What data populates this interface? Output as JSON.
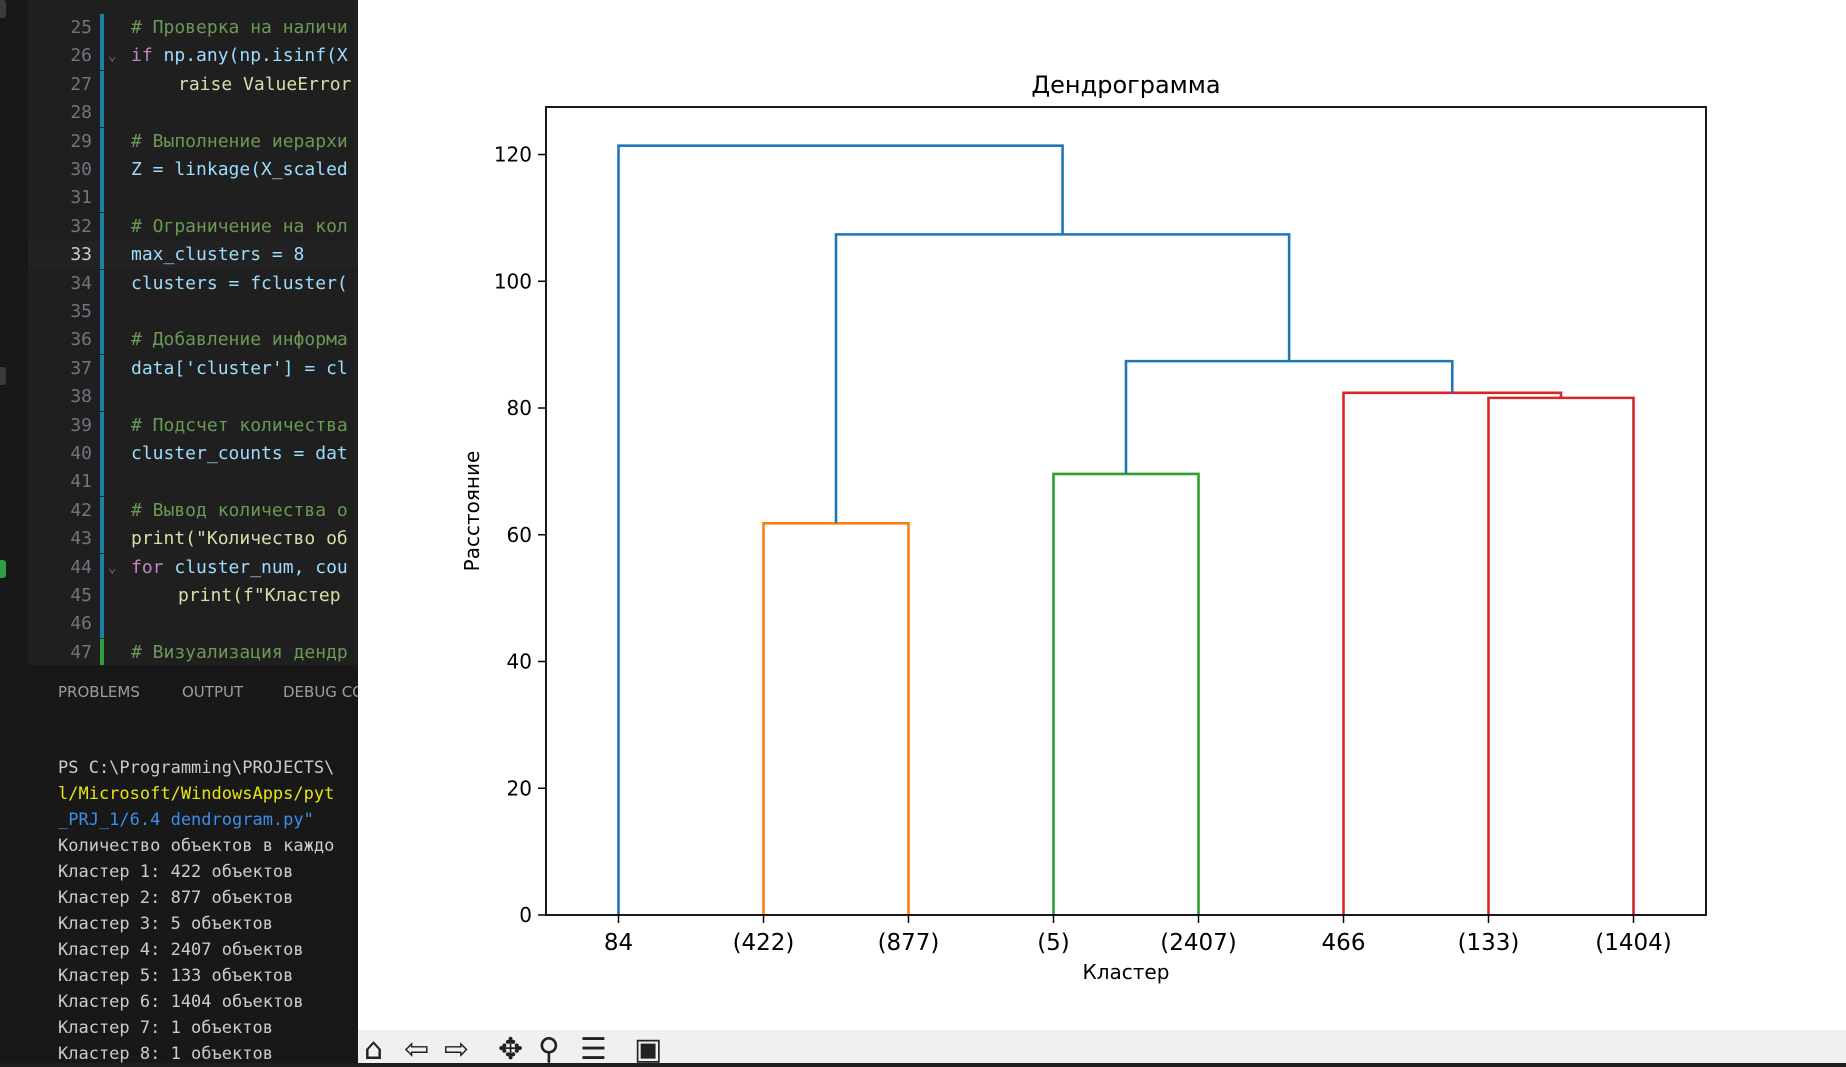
{
  "editor": {
    "lines": [
      {
        "n": "25",
        "text": "# Проверка на наличи",
        "cls": "cm"
      },
      {
        "n": "26",
        "kw": "if ",
        "rest": "np.any(np.isinf(X",
        "fold": true
      },
      {
        "n": "27",
        "text": "raise ValueError",
        "indent": true,
        "cls": "fn"
      },
      {
        "n": "28",
        "text": ""
      },
      {
        "n": "29",
        "text": "# Выполнение иерархи",
        "cls": "cm"
      },
      {
        "n": "30",
        "text": "Z = linkage(X_scaled",
        "cls": "var"
      },
      {
        "n": "31",
        "text": ""
      },
      {
        "n": "32",
        "text": "# Ограничение на кол",
        "cls": "cm"
      },
      {
        "n": "33",
        "text": "max_clusters = 8",
        "cls": "var",
        "active": true
      },
      {
        "n": "34",
        "text": "clusters = fcluster(",
        "cls": "var"
      },
      {
        "n": "35",
        "text": ""
      },
      {
        "n": "36",
        "text": "# Добавление информа",
        "cls": "cm"
      },
      {
        "n": "37",
        "text": "data['cluster'] = cl",
        "cls": "var"
      },
      {
        "n": "38",
        "text": ""
      },
      {
        "n": "39",
        "text": "# Подсчет количества",
        "cls": "cm"
      },
      {
        "n": "40",
        "text": "cluster_counts = dat",
        "cls": "var"
      },
      {
        "n": "41",
        "text": ""
      },
      {
        "n": "42",
        "text": "# Вывод количества о",
        "cls": "cm"
      },
      {
        "n": "43",
        "text": "print(\"Количество об",
        "cls": "fn"
      },
      {
        "n": "44",
        "kw": "for ",
        "rest": "cluster_num, cou",
        "fold": true
      },
      {
        "n": "45",
        "text": "print(f\"Кластер ",
        "indent": true,
        "cls": "fn"
      },
      {
        "n": "46",
        "text": ""
      },
      {
        "n": "47",
        "text": "# Визуализация дендр",
        "cls": "cm"
      }
    ]
  },
  "panel": {
    "tabs": [
      "PROBLEMS",
      "OUTPUT",
      "DEBUG CON"
    ],
    "terminal": [
      "PS C:\\Programming\\PROJECTS\\",
      "l/Microsoft/WindowsApps/pyt",
      "_PRJ_1/6.4 dendrogram.py\"",
      "Количество объектов в каждо",
      "Кластер 1: 422 объектов",
      "Кластер 2: 877 объектов",
      "Кластер 3: 5 объектов",
      "Кластер 4: 2407 объектов",
      "Кластер 5: 133 объектов",
      "Кластер 6: 1404 объектов",
      "Кластер 7: 1 объектов",
      "Кластер 8: 1 объектов"
    ],
    "terminal_colors": [
      "#cccccc",
      "#e5e510",
      "#3b8eea",
      "#cccccc",
      "#cccccc",
      "#cccccc",
      "#cccccc",
      "#cccccc",
      "#cccccc",
      "#cccccc",
      "#cccccc",
      "#cccccc"
    ]
  },
  "chart_data": {
    "type": "dendrogram",
    "title": "Дендрограмма",
    "xlabel": "Кластер",
    "ylabel": "Расстояние",
    "ylim": [
      0,
      127.5
    ],
    "yticks": [
      0,
      20,
      40,
      60,
      80,
      100,
      120
    ],
    "leaves": [
      "84",
      "(422)",
      "(877)",
      "(5)",
      "(2407)",
      "466",
      "(133)",
      "(1404)"
    ],
    "colors": {
      "blue": "#1f77b4",
      "orange": "#ff7f0e",
      "green": "#2ca02c",
      "red": "#d62728"
    },
    "links": [
      {
        "x": [
          2,
          2,
          3,
          3
        ],
        "y": [
          0,
          61.8,
          61.8,
          0
        ],
        "color": "orange"
      },
      {
        "x": [
          4,
          4,
          5,
          5
        ],
        "y": [
          0,
          69.6,
          69.6,
          0
        ],
        "color": "green"
      },
      {
        "x": [
          7,
          7,
          8,
          8
        ],
        "y": [
          0,
          81.6,
          81.6,
          0
        ],
        "color": "red"
      },
      {
        "x": [
          6,
          6,
          7.5,
          7.5
        ],
        "y": [
          0,
          82.4,
          82.4,
          81.6
        ],
        "color": "red"
      },
      {
        "x": [
          4.5,
          4.5,
          6.75,
          6.75
        ],
        "y": [
          69.6,
          87.4,
          87.4,
          82.4
        ],
        "color": "blue"
      },
      {
        "x": [
          2.5,
          2.5,
          5.625,
          5.625
        ],
        "y": [
          61.8,
          107.4,
          107.4,
          87.4
        ],
        "color": "blue"
      },
      {
        "x": [
          1,
          1,
          4.0625,
          4.0625
        ],
        "y": [
          0,
          121.4,
          121.4,
          107.4
        ],
        "color": "blue"
      }
    ]
  },
  "toolbar": {
    "buttons": [
      {
        "name": "home-icon",
        "glyph": "⌂"
      },
      {
        "name": "back-icon",
        "glyph": "⇦"
      },
      {
        "name": "forward-icon",
        "glyph": "⇨"
      },
      {
        "name": "pan-icon",
        "glyph": "✥"
      },
      {
        "name": "zoom-icon",
        "glyph": "⚲"
      },
      {
        "name": "configure-icon",
        "glyph": "☰"
      },
      {
        "name": "save-icon",
        "glyph": "▣"
      }
    ]
  }
}
